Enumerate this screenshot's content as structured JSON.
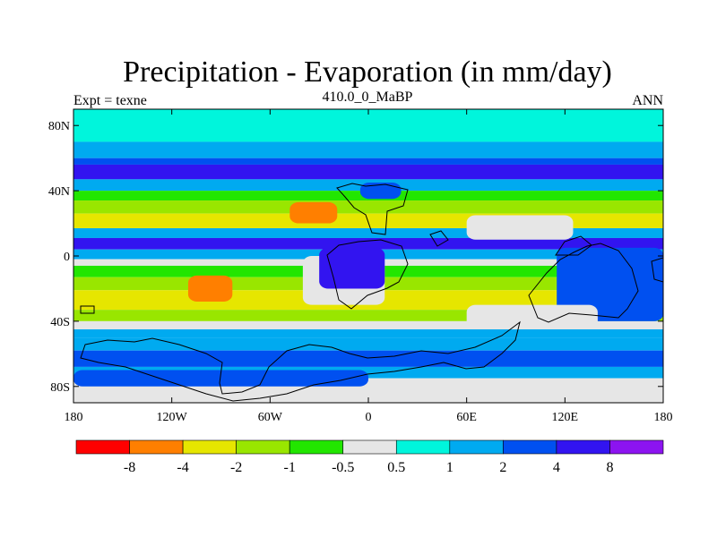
{
  "chart_data": {
    "type": "heatmap",
    "title": "Precipitation - Evaporation (in mm/day)",
    "subtitle_left": "Expt = texne",
    "subtitle_center": "410.0_0_MaBP",
    "subtitle_right": "ANN",
    "xlabel": "",
    "ylabel": "",
    "xlim": [
      -180,
      180
    ],
    "ylim": [
      -90,
      90
    ],
    "x_ticks": [
      {
        "value": -180,
        "label": "180"
      },
      {
        "value": -120,
        "label": "120W"
      },
      {
        "value": -60,
        "label": "60W"
      },
      {
        "value": 0,
        "label": "0"
      },
      {
        "value": 60,
        "label": "60E"
      },
      {
        "value": 120,
        "label": "120E"
      },
      {
        "value": 180,
        "label": "180"
      }
    ],
    "y_ticks": [
      {
        "value": 80,
        "label": "80N"
      },
      {
        "value": 40,
        "label": "40N"
      },
      {
        "value": 0,
        "label": "0"
      },
      {
        "value": -40,
        "label": "40S"
      },
      {
        "value": -80,
        "label": "80S"
      }
    ],
    "colorbar": {
      "colors": [
        "#ff0000",
        "#ff7f00",
        "#e6e600",
        "#99e600",
        "#22e600",
        "#e6e6e6",
        "#00f5dc",
        "#00aaf0",
        "#0050f0",
        "#3214f0",
        "#8c14f0"
      ],
      "labels": [
        "-8",
        "-4",
        "-2",
        "-1",
        "-0.5",
        "0.5",
        "1",
        "2",
        "4",
        "8"
      ]
    },
    "bands": [
      {
        "lat": [
          70,
          90
        ],
        "value": 0.7
      },
      {
        "lat": [
          60,
          70
        ],
        "value": 1.5
      },
      {
        "lat": [
          56,
          60
        ],
        "value": 3.0
      },
      {
        "lat": [
          47,
          56
        ],
        "value": 5.0
      },
      {
        "lat": [
          40,
          47
        ],
        "value": 1.5
      },
      {
        "lat": [
          34,
          40
        ],
        "value": -0.7
      },
      {
        "lat": [
          26,
          34
        ],
        "value": -1.3
      },
      {
        "lat": [
          17,
          26
        ],
        "value": -2.5
      },
      {
        "lat": [
          11,
          17
        ],
        "value": 1.5
      },
      {
        "lat": [
          4,
          11
        ],
        "value": 5.0
      },
      {
        "lat": [
          -2,
          4
        ],
        "value": 1.5
      },
      {
        "lat": [
          -6,
          -2
        ],
        "value": 0
      },
      {
        "lat": [
          -13,
          -6
        ],
        "value": -0.8
      },
      {
        "lat": [
          -21,
          -13
        ],
        "value": -1.5
      },
      {
        "lat": [
          -33,
          -21
        ],
        "value": -2.5
      },
      {
        "lat": [
          -40,
          -33
        ],
        "value": -1.3
      },
      {
        "lat": [
          -45,
          -40
        ],
        "value": 0
      },
      {
        "lat": [
          -50,
          -45
        ],
        "value": 1.5
      },
      {
        "lat": [
          -58,
          -50
        ],
        "value": 1.5
      },
      {
        "lat": [
          -68,
          -58
        ],
        "value": 3.0
      },
      {
        "lat": [
          -75,
          -68
        ],
        "value": 1.5
      },
      {
        "lat": [
          -90,
          -75
        ],
        "value": 0
      }
    ],
    "patches": [
      {
        "lon": [
          -48,
          -19
        ],
        "lat": [
          20,
          33
        ],
        "value": -5
      },
      {
        "lon": [
          -110,
          -83
        ],
        "lat": [
          -28,
          -12
        ],
        "value": -5
      },
      {
        "lon": [
          127,
          150
        ],
        "lat": [
          -30,
          -10
        ],
        "value": -5
      },
      {
        "lon": [
          -40,
          10
        ],
        "lat": [
          -30,
          0
        ],
        "value": 0
      },
      {
        "lon": [
          -30,
          10
        ],
        "lat": [
          -20,
          5
        ],
        "value": 5
      },
      {
        "lon": [
          -5,
          20
        ],
        "lat": [
          35,
          45
        ],
        "value": 3
      },
      {
        "lon": [
          60,
          125
        ],
        "lat": [
          10,
          25
        ],
        "value": 0
      },
      {
        "lon": [
          115,
          180
        ],
        "lat": [
          -40,
          5
        ],
        "value": 3
      },
      {
        "lon": [
          -180,
          0
        ],
        "lat": [
          -80,
          -70
        ],
        "value": 3
      },
      {
        "lon": [
          60,
          140
        ],
        "lat": [
          -45,
          -30
        ],
        "value": 0
      }
    ]
  }
}
